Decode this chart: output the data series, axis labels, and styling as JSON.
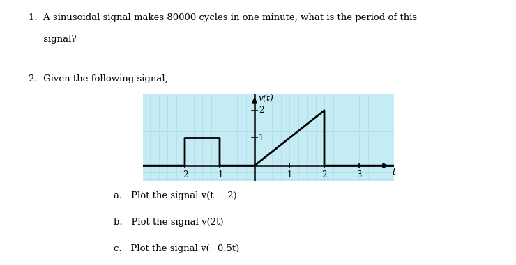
{
  "title": "v(t)",
  "xlabel": "t",
  "xlim": [
    -3.2,
    4.0
  ],
  "ylim": [
    -0.55,
    2.6
  ],
  "xticks": [
    -2,
    -1,
    1,
    2,
    3
  ],
  "yticks": [
    1,
    2
  ],
  "signal_t": [
    -3.2,
    -2,
    -2,
    -1,
    -1,
    0,
    0,
    2,
    2,
    3,
    3,
    4.0
  ],
  "signal_v": [
    0,
    0,
    1,
    1,
    0,
    0,
    0,
    2,
    0,
    0,
    0,
    0
  ],
  "grid_color": "#aadce8",
  "line_color": "#000000",
  "bg_color": "#c5ecf5",
  "text_q1_line1": "1.  A sinusoidal signal makes 80000 cycles in one minute, what is the period of this",
  "text_q1_line2": "     signal?",
  "text_q2": "2.  Given the following signal,",
  "text_a": "a.   Plot the signal v(t − 2)",
  "text_b": "b.   Plot the signal v(2t)",
  "text_c": "c.   Plot the signal v(−0.5t)",
  "fig_width": 7.4,
  "fig_height": 3.81,
  "dpi": 100
}
